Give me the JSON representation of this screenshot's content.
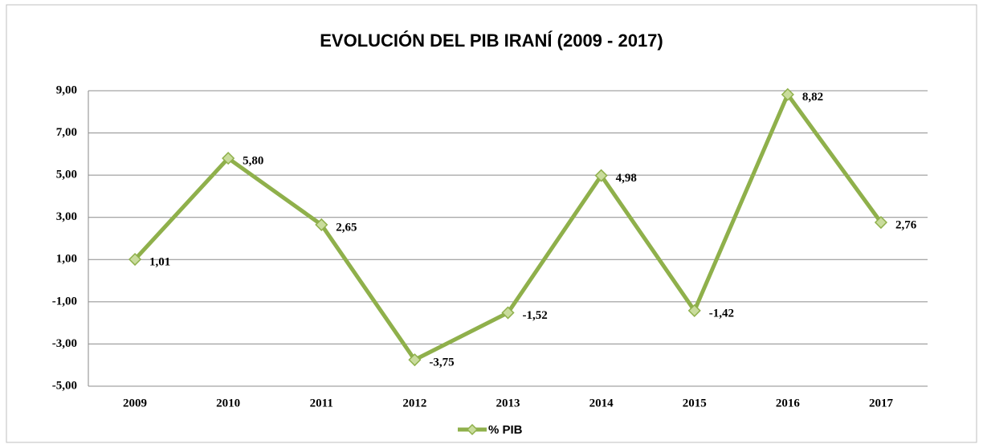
{
  "chart_data": {
    "type": "line",
    "title": "EVOLUCIÓN DEL PIB IRANÍ (2009 - 2017)",
    "categories": [
      "2009",
      "2010",
      "2011",
      "2012",
      "2013",
      "2014",
      "2015",
      "2016",
      "2017"
    ],
    "series": [
      {
        "name": "% PIB",
        "color": "#8fb04b",
        "values": [
          1.01,
          5.8,
          2.65,
          -3.75,
          -1.52,
          4.98,
          -1.42,
          8.82,
          2.76
        ],
        "value_labels": [
          "1,01",
          "5,80",
          "2,65",
          "-3,75",
          "-1,52",
          "4,98",
          "-1,42",
          "8,82",
          "2,76"
        ]
      }
    ],
    "ylim": [
      -5,
      9
    ],
    "yticks": [
      {
        "value": -5,
        "label": "-5,00"
      },
      {
        "value": -3,
        "label": "-3,00"
      },
      {
        "value": -1,
        "label": "-1,00"
      },
      {
        "value": 1,
        "label": "1,00"
      },
      {
        "value": 3,
        "label": "3,00"
      },
      {
        "value": 5,
        "label": "5,00"
      },
      {
        "value": 7,
        "label": "7,00"
      },
      {
        "value": 9,
        "label": "9,00"
      }
    ],
    "grid": true,
    "legend": "bottom"
  }
}
